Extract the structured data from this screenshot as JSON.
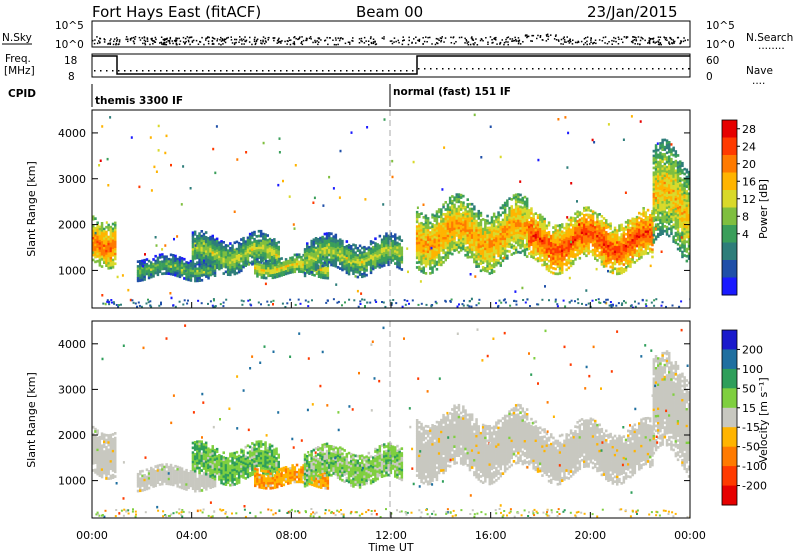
{
  "header": {
    "title": "Fort Hays East (fitACF)",
    "beam": "Beam 00",
    "date": "23/Jan/2015"
  },
  "top_panels": {
    "nsky_label": "N.Sky",
    "nsearch_label": "N.Search",
    "nsearch_marker": "........",
    "nsky_ticks": [
      "10^5",
      "10^0"
    ],
    "nsearch_ticks": [
      "10^5",
      "10^0"
    ],
    "freq_label_line1": "Freq.",
    "freq_label_line2": "[MHz]",
    "freq_ticks": [
      "18",
      "8"
    ],
    "nave_label": "Nave",
    "nave_marker": "....",
    "nave_ticks": [
      "60",
      "0"
    ],
    "cpid_label": "CPID",
    "cpid_1": "themis 3300 IF",
    "cpid_2": "normal (fast) 151 IF"
  },
  "power_panel": {
    "ylabel": "Slant Range [km]",
    "yticks": [
      "4000",
      "3000",
      "2000",
      "1000"
    ],
    "colorbar_label": "Power [dB]",
    "colorbar_ticks": [
      "28",
      "24",
      "20",
      "16",
      "12",
      "8",
      "4"
    ],
    "colors": [
      "#1a1aff",
      "#1f4fa8",
      "#2e7d7a",
      "#3a9e5a",
      "#7fbf3f",
      "#d9d92a",
      "#ffb400",
      "#ff7a00",
      "#ff3a00",
      "#e60000"
    ]
  },
  "velocity_panel": {
    "ylabel": "Slant Range [km]",
    "yticks": [
      "4000",
      "3000",
      "2000",
      "1000"
    ],
    "colorbar_label": "Velocity [m s⁻¹]",
    "colorbar_ticks": [
      "200",
      "100",
      "50",
      "15",
      "-15",
      "-50",
      "-100",
      "-200"
    ],
    "colors": [
      "#1a1acc",
      "#1f6fa0",
      "#2e9e5a",
      "#7fcf3f",
      "#c8c8c0",
      "#ffb400",
      "#ff7a00",
      "#ff3a00",
      "#e60000"
    ],
    "ground_scatter_color": "#c8c8c0"
  },
  "x_axis": {
    "ticks": [
      "00:00",
      "04:00",
      "08:00",
      "12:00",
      "16:00",
      "20:00",
      "00:00"
    ],
    "label": "Time UT"
  },
  "chart_data": {
    "type": "heatmap",
    "title": "Fort Hays East (fitACF)",
    "xlabel": "Time UT",
    "ylabel": "Slant Range [km]",
    "x_range_hours": [
      0,
      24
    ],
    "ylim_km": [
      180,
      4500
    ],
    "power_db_range": [
      0,
      30
    ],
    "velocity_range": [
      -250,
      250
    ],
    "scatter_regions": [
      {
        "t_start": 0.0,
        "t_end": 1.0,
        "r_low": 1200,
        "r_high": 2200,
        "power_db": 18,
        "velocity": -5
      },
      {
        "t_start": 1.8,
        "t_end": 5.0,
        "r_low": 850,
        "r_high": 1300,
        "power_db": 8,
        "velocity": 10
      },
      {
        "t_start": 4.0,
        "t_end": 7.5,
        "r_low": 1000,
        "r_high": 1750,
        "power_db": 10,
        "velocity": 40
      },
      {
        "t_start": 6.5,
        "t_end": 9.5,
        "r_low": 900,
        "r_high": 1300,
        "power_db": 12,
        "velocity": -40
      },
      {
        "t_start": 8.5,
        "t_end": 12.5,
        "r_low": 950,
        "r_high": 1700,
        "power_db": 10,
        "velocity": 30
      },
      {
        "t_start": 13.0,
        "t_end": 17.5,
        "r_low": 1150,
        "r_high": 2450,
        "power_db": 16,
        "velocity": -5
      },
      {
        "t_start": 17.5,
        "t_end": 22.5,
        "r_low": 1100,
        "r_high": 2200,
        "power_db": 20,
        "velocity": -5
      },
      {
        "t_start": 22.5,
        "t_end": 24.0,
        "r_low": 1400,
        "r_high": 3500,
        "power_db": 14,
        "velocity": 0
      }
    ]
  }
}
